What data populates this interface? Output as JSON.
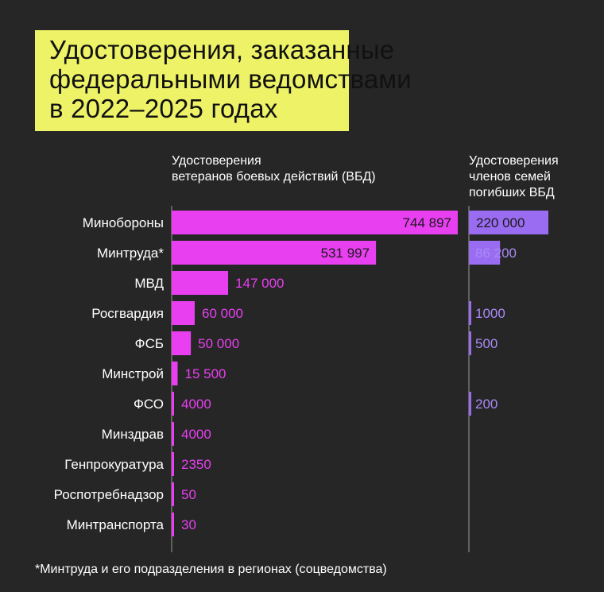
{
  "title": {
    "lines": [
      "Удостоверения, заказанные",
      "федеральными ведомствами",
      "в 2022–2025 годах"
    ]
  },
  "column_headers": {
    "vbd": [
      "Удостоверения",
      "ветеранов боевых действий (ВБД)"
    ],
    "family": [
      "Удостоверения",
      "членов семей",
      "погибших ВБД"
    ]
  },
  "footnote": "*Минтруда и его подразделения в регионах (соцведомства)",
  "colors": {
    "background": "#262626",
    "title_bg": "#eef266",
    "vbd_bar": "#e83ff0",
    "vbd_label": "#e83ff0",
    "family_bar": "#9a6cf2",
    "family_label": "#a98af5",
    "axis": "#9a9a9a",
    "bar_text": "#1a1a1a"
  },
  "chart_data": {
    "type": "bar",
    "orientation": "horizontal",
    "categories": [
      "Минобороны",
      "Минтруда*",
      "МВД",
      "Росгвардия",
      "ФСБ",
      "Минстрой",
      "ФСО",
      "Минздрав",
      "Генпрокуратура",
      "Роспотребнадзор",
      "Минтранспорта"
    ],
    "series": [
      {
        "name": "Удостоверения ветеранов боевых действий (ВБД)",
        "values": [
          744897,
          531997,
          147000,
          60000,
          50000,
          15500,
          4000,
          4000,
          2350,
          50,
          30
        ],
        "labels": [
          "744 897",
          "531 997",
          "147 000",
          "60 000",
          "50 000",
          "15 500",
          "4000",
          "4000",
          "2350",
          "50",
          "30"
        ]
      },
      {
        "name": "Удостоверения членов семей погибших ВБД",
        "values": [
          220000,
          86200,
          null,
          1000,
          500,
          null,
          200,
          null,
          null,
          null,
          null
        ],
        "labels": [
          "220 000",
          "86 200",
          "",
          "1000",
          "500",
          "",
          "200",
          "",
          "",
          "",
          ""
        ]
      }
    ]
  }
}
